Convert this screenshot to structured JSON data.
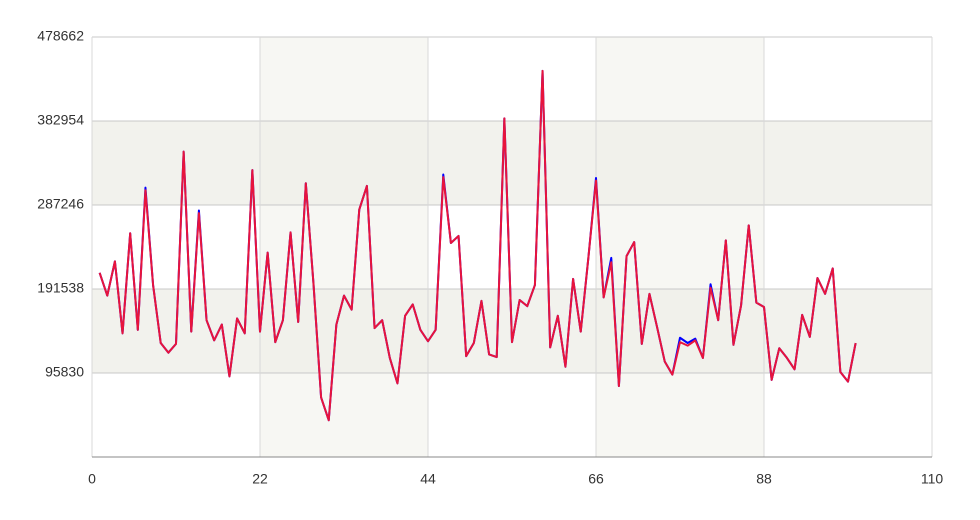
{
  "chart_data": {
    "type": "line",
    "x": [
      1,
      2,
      3,
      4,
      5,
      6,
      7,
      8,
      9,
      10,
      11,
      12,
      13,
      14,
      15,
      16,
      17,
      18,
      19,
      20,
      21,
      22,
      23,
      24,
      25,
      26,
      27,
      28,
      29,
      30,
      31,
      32,
      33,
      34,
      35,
      36,
      37,
      38,
      39,
      40,
      41,
      42,
      43,
      44,
      45,
      46,
      47,
      48,
      49,
      50,
      51,
      52,
      53,
      54,
      55,
      56,
      57,
      58,
      59,
      60,
      61,
      62,
      63,
      64,
      65,
      66,
      67,
      68,
      69,
      70,
      71,
      72,
      73,
      74,
      75,
      76,
      77,
      78,
      79,
      80,
      81,
      82,
      83,
      84,
      85,
      86,
      87,
      88,
      89,
      90,
      91,
      92,
      93,
      94,
      95,
      96,
      97,
      98,
      99,
      100
    ],
    "series": [
      {
        "color": "#0000ff",
        "values": [
          210000,
          184000,
          223000,
          141000,
          255000,
          145000,
          307000,
          196000,
          130000,
          119000,
          129000,
          348000,
          143000,
          281000,
          156000,
          133000,
          151000,
          92000,
          158000,
          141000,
          327000,
          143000,
          233000,
          131000,
          156000,
          256000,
          154000,
          312000,
          198000,
          68000,
          42000,
          151000,
          184000,
          168000,
          282000,
          309000,
          147000,
          156000,
          113000,
          84000,
          161000,
          174000,
          145000,
          132000,
          145000,
          322000,
          244000,
          252000,
          115000,
          130000,
          178000,
          117000,
          114000,
          386000,
          131000,
          179000,
          172000,
          196000,
          440000,
          125000,
          161000,
          103000,
          203000,
          143000,
          227000,
          318000,
          182000,
          227000,
          81000,
          229000,
          245000,
          129000,
          186000,
          148000,
          109000,
          94000,
          136000,
          130000,
          135000,
          113000,
          197000,
          156000,
          247000,
          128000,
          173000,
          264000,
          176000,
          171000,
          88000,
          124000,
          113000,
          100000,
          162000,
          137000,
          204000,
          186000,
          215000,
          97000,
          86000,
          130000
        ]
      },
      {
        "color": "#e8143c",
        "values": [
          210000,
          184000,
          223000,
          141000,
          255000,
          145000,
          304000,
          196000,
          130000,
          119000,
          129000,
          348000,
          143000,
          278000,
          156000,
          133000,
          151000,
          92000,
          158000,
          141000,
          327000,
          143000,
          233000,
          131000,
          156000,
          256000,
          154000,
          312000,
          198000,
          68000,
          42000,
          151000,
          184000,
          168000,
          282000,
          309000,
          147000,
          156000,
          113000,
          84000,
          161000,
          174000,
          145000,
          132000,
          145000,
          319000,
          244000,
          252000,
          115000,
          130000,
          178000,
          117000,
          114000,
          386000,
          131000,
          179000,
          172000,
          196000,
          440000,
          125000,
          161000,
          103000,
          203000,
          143000,
          227000,
          315000,
          182000,
          222000,
          81000,
          229000,
          245000,
          129000,
          186000,
          148000,
          109000,
          94000,
          131000,
          127000,
          133000,
          113000,
          193000,
          156000,
          247000,
          128000,
          173000,
          264000,
          176000,
          171000,
          88000,
          124000,
          113000,
          100000,
          162000,
          137000,
          204000,
          186000,
          215000,
          97000,
          86000,
          130000
        ]
      }
    ],
    "xlim": [
      0,
      110
    ],
    "xticks": [
      0,
      22,
      44,
      66,
      88,
      110
    ],
    "ylim": [
      122,
      478662
    ],
    "yticks": [
      95830,
      191538,
      287246,
      382954,
      478662
    ],
    "grid": true
  }
}
